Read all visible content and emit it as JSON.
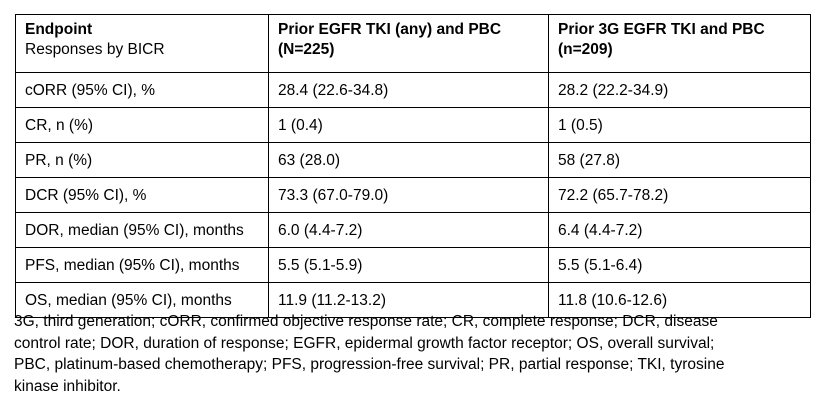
{
  "table": {
    "header": {
      "endpoint": {
        "line1": "Endpoint",
        "line2": "Responses by BICR"
      },
      "col2": {
        "line1": "Prior EGFR TKI (any) and PBC",
        "line2": "(N=225)"
      },
      "col3": {
        "line1": "Prior 3G EGFR TKI and PBC",
        "line2": "(n=209)"
      }
    },
    "rows": [
      {
        "label": "cORR (95% CI), %",
        "col1": "28.4 (22.6-34.8)",
        "col2": "28.2 (22.2-34.9)"
      },
      {
        "label": "CR, n (%)",
        "col1": "1 (0.4)",
        "col2": "1 (0.5)"
      },
      {
        "label": "PR, n (%)",
        "col1": "63 (28.0)",
        "col2": "58 (27.8)"
      },
      {
        "label": "DCR (95% CI), %",
        "col1": "73.3 (67.0-79.0)",
        "col2": "72.2 (65.7-78.2)"
      },
      {
        "label": "DOR, median (95% CI), months",
        "col1": "6.0 (4.4-7.2)",
        "col2": "6.4 (4.4-7.2)"
      },
      {
        "label": "PFS, median (95% CI), months",
        "col1": "5.5 (5.1-5.9)",
        "col2": "5.5 (5.1-6.4)"
      },
      {
        "label": "OS, median (95% CI), months",
        "col1": "11.9 (11.2-13.2)",
        "col2": "11.8 (10.6-12.6)"
      }
    ]
  },
  "footnote": {
    "lines": [
      "3G, third generation; cORR, confirmed objective response rate; CR, complete response; DCR, disease",
      "control rate; DOR, duration of response; EGFR, epidermal growth factor receptor; OS, overall survival;",
      "PBC, platinum-based chemotherapy; PFS, progression-free survival; PR, partial response; TKI, tyrosine",
      "kinase inhibitor."
    ]
  },
  "colors": {
    "border": "#000000",
    "text": "#000000",
    "background": "#ffffff"
  }
}
